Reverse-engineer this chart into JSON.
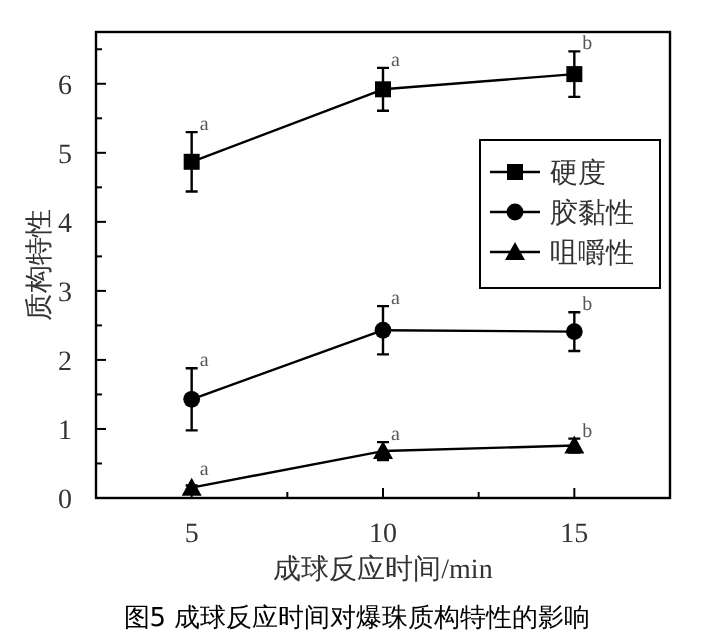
{
  "chart_data": {
    "type": "line",
    "xlabel": "成球反应时间/min",
    "ylabel": "质构特性",
    "x": [
      5,
      10,
      15
    ],
    "xlim": [
      2.5,
      17.5
    ],
    "xticks": [
      5,
      10,
      15
    ],
    "ylim": [
      0,
      6.75
    ],
    "yticks": [
      0,
      1,
      2,
      3,
      4,
      5,
      6
    ],
    "grid": false,
    "legend": "right",
    "series": [
      {
        "name": "硬度",
        "color": "#000000",
        "marker": "square",
        "values": [
          4.87,
          5.92,
          6.14
        ],
        "errors": [
          0.43,
          0.31,
          0.33
        ]
      },
      {
        "name": "胶黏性",
        "color": "#000000",
        "marker": "circle",
        "values": [
          1.43,
          2.43,
          2.41
        ],
        "errors": [
          0.45,
          0.35,
          0.28
        ]
      },
      {
        "name": "咀嚼性",
        "color": "#000000",
        "marker": "triangle",
        "values": [
          0.15,
          0.68,
          0.76
        ],
        "errors": [
          0.03,
          0.13,
          0.1
        ]
      }
    ],
    "annotations": [
      {
        "text": "a",
        "x": 5,
        "y": 5.3
      },
      {
        "text": "a",
        "x": 10,
        "y": 6.23
      },
      {
        "text": "b",
        "x": 15,
        "y": 6.47
      },
      {
        "text": "a",
        "x": 5,
        "y": 1.88
      },
      {
        "text": "a",
        "x": 10,
        "y": 2.78
      },
      {
        "text": "b",
        "x": 15,
        "y": 2.69
      },
      {
        "text": "a",
        "x": 5,
        "y": 0.3
      },
      {
        "text": "a",
        "x": 10,
        "y": 0.81
      },
      {
        "text": "b",
        "x": 15,
        "y": 0.86
      },
      "图5  成球反应时间对爆珠质构特性的影响"
    ]
  }
}
